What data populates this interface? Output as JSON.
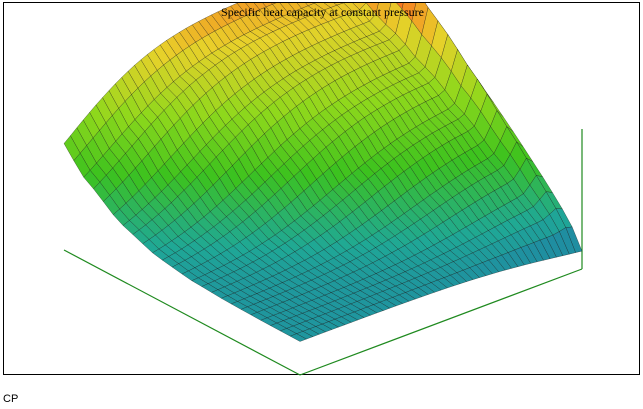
{
  "chart_data": {
    "type": "surface",
    "title": "Specific heat capacity at constant pressure",
    "z_variable": "CP",
    "grid": false,
    "colormap": [
      "#1f6fae",
      "#1fa896",
      "#3cc21e",
      "#8fd81c",
      "#e8d12a",
      "#ff5a1e"
    ]
  },
  "caption": "CP",
  "colors": {
    "axes": "#1f8a1f",
    "mesh": "#111111",
    "frame": "#000000"
  }
}
